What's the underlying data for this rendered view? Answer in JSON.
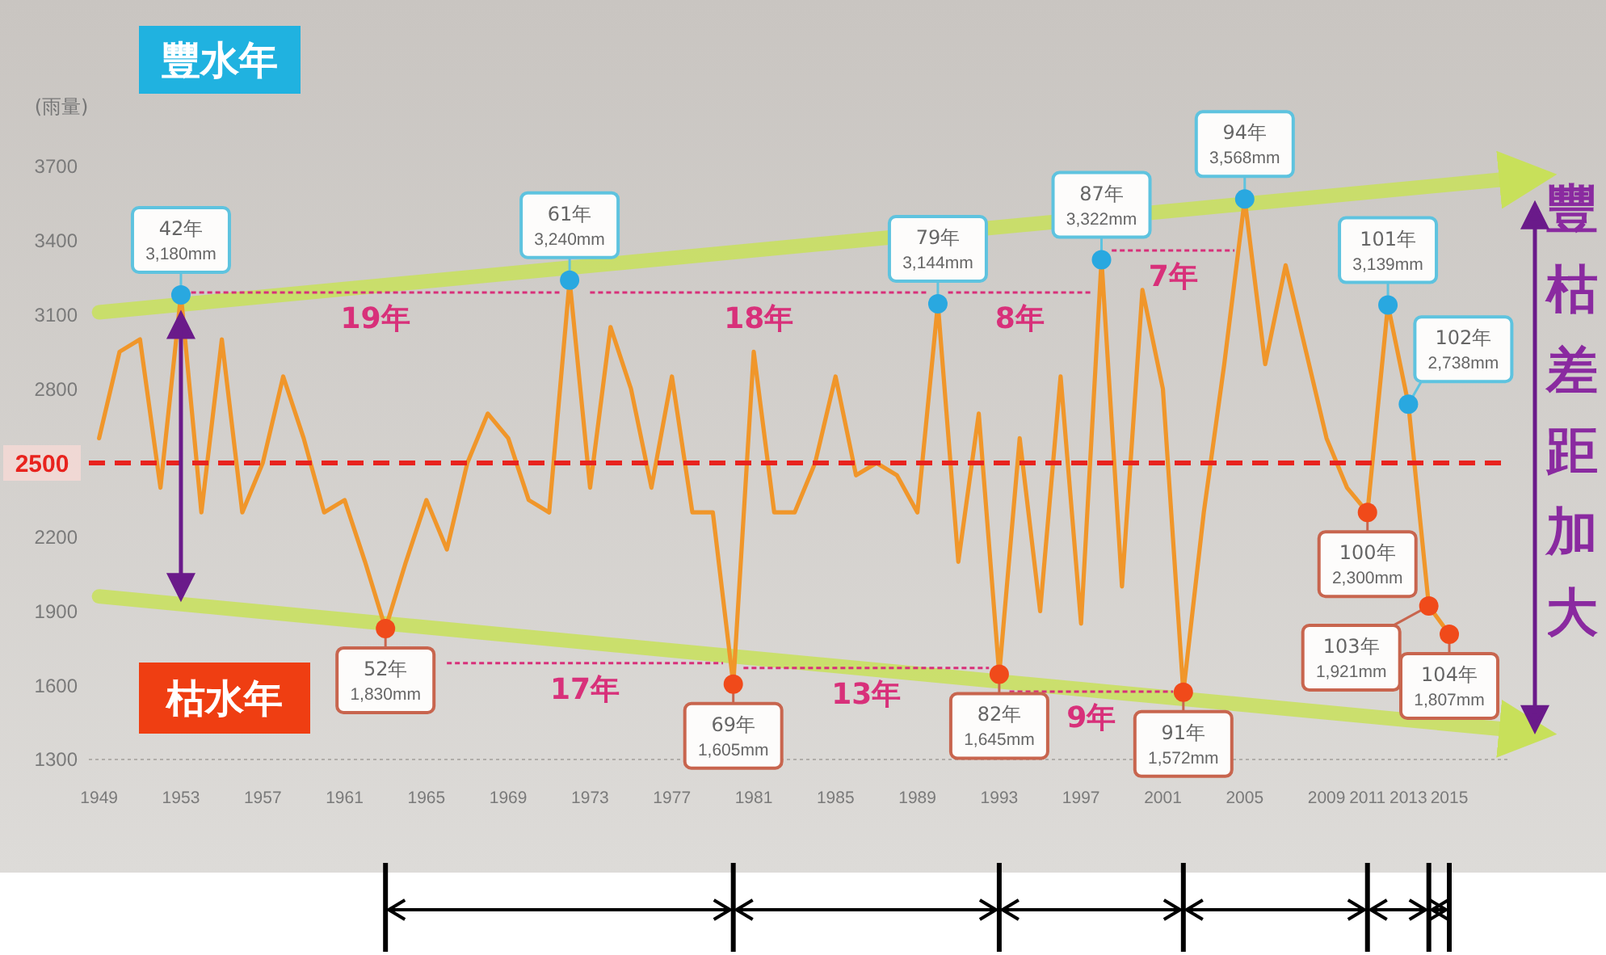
{
  "chart_data": {
    "type": "line",
    "ylabel": "(雨量)",
    "grid": false,
    "marker": "none",
    "line_style": "solid",
    "x": [
      1949,
      1950,
      1951,
      1952,
      1953,
      1954,
      1955,
      1956,
      1957,
      1958,
      1959,
      1960,
      1961,
      1962,
      1963,
      1964,
      1965,
      1966,
      1967,
      1968,
      1969,
      1970,
      1971,
      1972,
      1973,
      1974,
      1975,
      1976,
      1977,
      1978,
      1979,
      1980,
      1981,
      1982,
      1983,
      1984,
      1985,
      1986,
      1987,
      1988,
      1989,
      1990,
      1991,
      1992,
      1993,
      1994,
      1995,
      1996,
      1997,
      1998,
      1999,
      2000,
      2001,
      2002,
      2003,
      2004,
      2005,
      2006,
      2007,
      2008,
      2009,
      2010,
      2011,
      2012,
      2013,
      2014,
      2015
    ],
    "series": [
      {
        "color": "#f0962a",
        "values": [
          2600,
          2950,
          3000,
          2400,
          3180,
          2300,
          3000,
          2300,
          2500,
          2850,
          2600,
          2300,
          2350,
          2100,
          1830,
          2100,
          2350,
          2150,
          2500,
          2700,
          2600,
          2350,
          2300,
          3240,
          2400,
          3050,
          2800,
          2400,
          2850,
          2300,
          2300,
          1605,
          2950,
          2300,
          2300,
          2500,
          2850,
          2450,
          2500,
          2450,
          2300,
          3144,
          2100,
          2700,
          1645,
          2600,
          1900,
          2850,
          1850,
          3322,
          2000,
          3200,
          2800,
          1572,
          2300,
          2900,
          3568,
          2900,
          3300,
          2950,
          2600,
          2400,
          2300,
          3139,
          2738,
          1921,
          1807
        ]
      },
      {
        "type": "line",
        "color": "#c8e05a",
        "x": [
          1949,
          2018
        ],
        "values": [
          3110,
          3650
        ]
      },
      {
        "type": "line",
        "color": "#c8e05a",
        "x": [
          1949,
          2018
        ],
        "values": [
          1960,
          1420
        ]
      },
      {
        "type": "line",
        "name": "19年",
        "color": "#d8307a",
        "line_style": "dashed",
        "x": [
          1953.5,
          1971.5
        ],
        "values": [
          3190,
          3190
        ]
      },
      {
        "type": "line",
        "name": "18年",
        "color": "#d8307a",
        "line_style": "dashed",
        "x": [
          1973,
          1989.5
        ],
        "values": [
          3190,
          3190
        ]
      },
      {
        "type": "line",
        "name": "8年",
        "color": "#d8307a",
        "line_style": "dashed",
        "x": [
          1990.5,
          1997.5
        ],
        "values": [
          3190,
          3190
        ]
      },
      {
        "type": "line",
        "name": "7年",
        "color": "#d8307a",
        "line_style": "dashed",
        "x": [
          1998.5,
          2004.5
        ],
        "values": [
          3360,
          3360
        ]
      },
      {
        "type": "line",
        "name": "17年",
        "color": "#d8307a",
        "line_style": "dashed",
        "x": [
          1966,
          1979.5
        ],
        "values": [
          1690,
          1690
        ]
      },
      {
        "type": "line",
        "name": "13年",
        "color": "#d8307a",
        "line_style": "dashed",
        "x": [
          1980.5,
          1992.5
        ],
        "values": [
          1670,
          1670
        ]
      },
      {
        "type": "line",
        "name": "9年",
        "color": "#d8307a",
        "line_style": "dashed",
        "x": [
          1993.5,
          2001.5
        ],
        "values": [
          1575,
          1575
        ]
      }
    ],
    "xlim": [
      1948.5,
      2018
    ],
    "xticks": [
      1949,
      1953,
      1957,
      1961,
      1965,
      1969,
      1973,
      1977,
      1981,
      1985,
      1989,
      1993,
      1997,
      2001,
      2005,
      2009,
      2011,
      2013,
      2015
    ],
    "ylim": [
      1300,
      3700
    ],
    "yticks": [
      1300,
      1600,
      1900,
      2200,
      2800,
      3100,
      3400,
      3700
    ],
    "ref_lines": [
      {
        "axis": "y",
        "value": 2500,
        "label": "2500",
        "color": "#e8231e",
        "line_style": "dashed"
      }
    ],
    "annotations": [
      "豐水年",
      "枯水年",
      "豐枯差距加大",
      {
        "text": "42年 3,180mm",
        "x": 1953,
        "y": 3180
      },
      {
        "text": "61年 3,240mm",
        "x": 1972,
        "y": 3240
      },
      {
        "text": "79年 3,144mm",
        "x": 1990,
        "y": 3144
      },
      {
        "text": "87年 3,322mm",
        "x": 1998,
        "y": 3322
      },
      {
        "text": "94年 3,568mm",
        "x": 2005,
        "y": 3568
      },
      {
        "text": "101年 3,139mm",
        "x": 2012,
        "y": 3139
      },
      {
        "text": "102年 2,738mm",
        "x": 2013,
        "y": 2738
      },
      {
        "text": "52年 1,830mm",
        "x": 1963,
        "y": 1830
      },
      {
        "text": "69年 1,605mm",
        "x": 1980,
        "y": 1605
      },
      {
        "text": "82年 1,645mm",
        "x": 1993,
        "y": 1645
      },
      {
        "text": "91年 1,572mm",
        "x": 2002,
        "y": 1572
      },
      {
        "text": "100年 2,300mm",
        "x": 2011,
        "y": 2300
      },
      {
        "text": "103年 1,921mm",
        "x": 2014,
        "y": 1921
      },
      {
        "text": "104年 1,807mm",
        "x": 2015,
        "y": 1807
      }
    ]
  }
}
